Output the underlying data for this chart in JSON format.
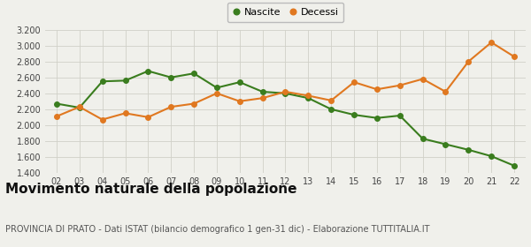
{
  "years": [
    2,
    3,
    4,
    5,
    6,
    7,
    8,
    9,
    10,
    11,
    12,
    13,
    14,
    15,
    16,
    17,
    18,
    19,
    20,
    21,
    22
  ],
  "nascite": [
    2270,
    2220,
    2550,
    2560,
    2680,
    2600,
    2650,
    2470,
    2540,
    2420,
    2400,
    2340,
    2200,
    2130,
    2090,
    2120,
    1830,
    1760,
    1690,
    1610,
    1490
  ],
  "decessi": [
    2110,
    2230,
    2070,
    2150,
    2100,
    2230,
    2270,
    2400,
    2300,
    2340,
    2420,
    2370,
    2310,
    2540,
    2450,
    2500,
    2580,
    2420,
    2800,
    3040,
    2860
  ],
  "nascite_color": "#3a7d1e",
  "decessi_color": "#e07820",
  "background_color": "#f0f0eb",
  "grid_color": "#d0d0c8",
  "ylim": [
    1400,
    3200
  ],
  "yticks": [
    1400,
    1600,
    1800,
    2000,
    2200,
    2400,
    2600,
    2800,
    3000,
    3200
  ],
  "title": "Movimento naturale della popolazione",
  "subtitle": "PROVINCIA DI PRATO - Dati ISTAT (bilancio demografico 1 gen-31 dic) - Elaborazione TUTTITALIA.IT",
  "legend_nascite": "Nascite",
  "legend_decessi": "Decessi",
  "title_fontsize": 11,
  "subtitle_fontsize": 7,
  "tick_fontsize": 7,
  "legend_fontsize": 8,
  "linewidth": 1.5,
  "markersize": 4
}
